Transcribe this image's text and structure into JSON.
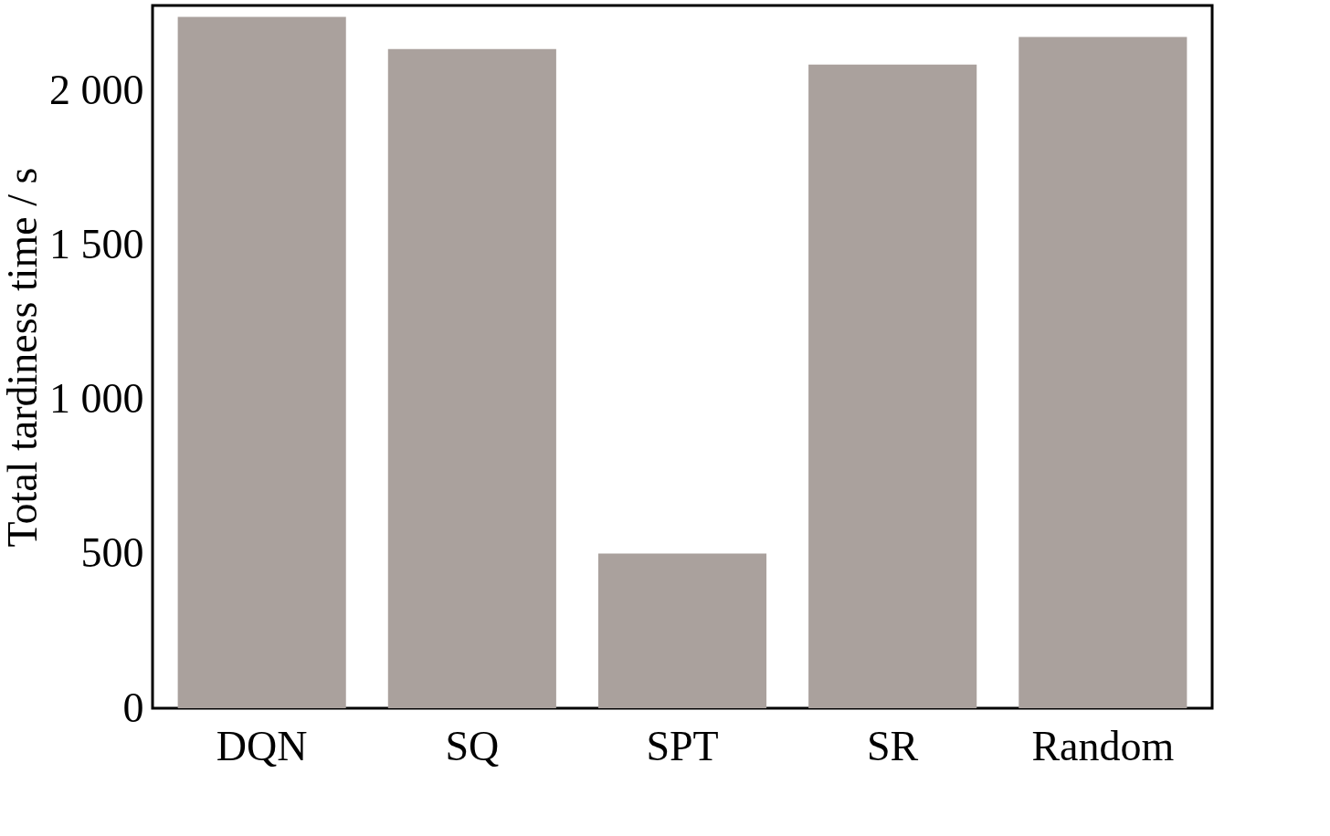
{
  "chart_data": {
    "type": "bar",
    "ylabel": "Total tardiness time / s",
    "categories": [
      "DQN",
      "SQ",
      "SPT",
      "SR",
      "Random"
    ],
    "values": [
      2238,
      2134,
      501,
      2084,
      2173
    ],
    "color": "#aaa19d",
    "ylim": [
      0,
      2275
    ],
    "yticks": [
      0,
      500,
      {
        "value": 1000,
        "label": "1 000"
      },
      {
        "value": 1500,
        "label": "1 500"
      },
      {
        "value": 2000,
        "label": "2 000"
      }
    ],
    "grid": false
  }
}
